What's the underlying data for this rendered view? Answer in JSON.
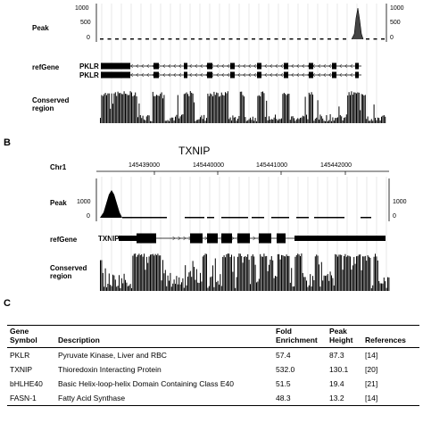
{
  "panel_a": {
    "track_labels": {
      "peak": "Peak",
      "refgene": "refGene",
      "conserved": "Conserved region"
    },
    "y_ticks_left": [
      "1000",
      "500",
      "0"
    ],
    "y_ticks_right": [
      "1000",
      "500",
      "0"
    ],
    "transcripts": [
      "PKLR",
      "PKLR"
    ]
  },
  "panel_b": {
    "letter": "B",
    "title": "TXNIP",
    "chrom": "Chr1",
    "positions": [
      "145439000",
      "145440000",
      "145441000",
      "145442000"
    ],
    "track_labels": {
      "peak": "Peak",
      "refgene": "refGene",
      "conserved": "Conserved region"
    },
    "y_ticks_left": [
      "1000",
      "0"
    ],
    "y_ticks_right": [
      "1000",
      "0"
    ],
    "transcript": "TXNIP"
  },
  "panel_c": {
    "letter": "C",
    "headers": [
      "Gene Symbol",
      "Description",
      "Fold Enrichment",
      "Peak Height",
      "References"
    ],
    "rows": [
      {
        "symbol": "PKLR",
        "description": "Pyruvate Kinase, Liver and RBC",
        "fold": "57.4",
        "peak": "87.3",
        "ref": "[14]"
      },
      {
        "symbol": "TXNIP",
        "description": "Thioredoxin Interacting Protein",
        "fold": "532.0",
        "peak": "130.1",
        "ref": "[20]"
      },
      {
        "symbol": "bHLHE40",
        "description": "Basic Helix-loop-helix Domain Containing Class E40",
        "fold": "51.5",
        "peak": "19.4",
        "ref": "[21]"
      },
      {
        "symbol": "FASN-1",
        "description": "Fatty Acid Synthase",
        "fold": "48.3",
        "peak": "13.2",
        "ref": "[14]"
      }
    ]
  }
}
